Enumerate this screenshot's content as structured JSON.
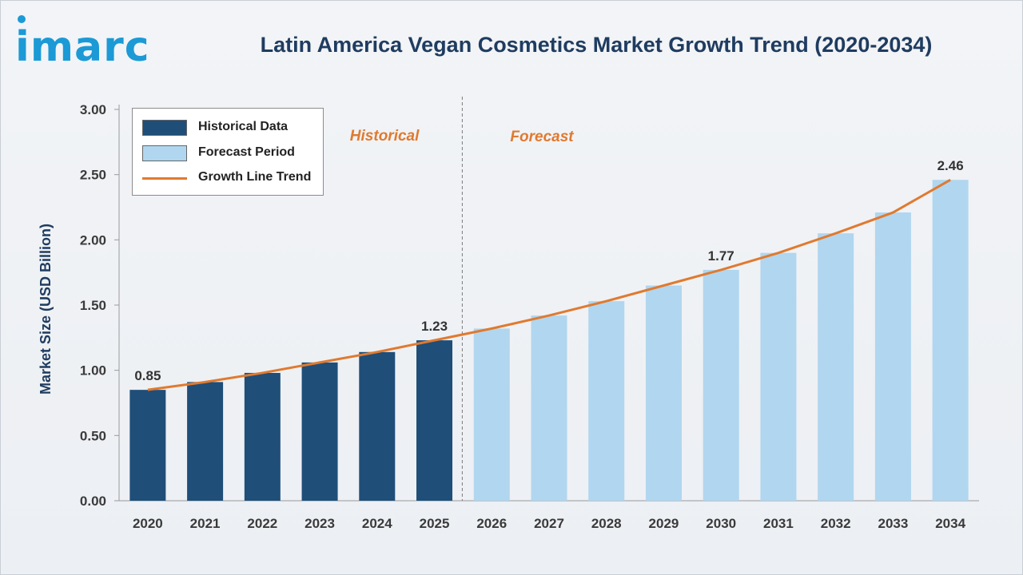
{
  "logo": {
    "text": "imarc"
  },
  "title": "Latin America Vegan Cosmetics Market Growth Trend (2020-2034)",
  "colors": {
    "historical": "#1f4e79",
    "forecast": "#b1d6ef",
    "trend": "#e07a2f",
    "title": "#1f3c60",
    "logo": "#1b9ad6"
  },
  "legend": {
    "items": [
      {
        "label": "Historical Data",
        "kind": "swatch",
        "color": "#1f4e79"
      },
      {
        "label": "Forecast Period",
        "kind": "swatch",
        "color": "#b1d6ef"
      },
      {
        "label": "Growth Line Trend",
        "kind": "line",
        "color": "#e07a2f"
      }
    ]
  },
  "chart_data": {
    "type": "bar",
    "title": "Latin America Vegan Cosmetics Market Growth Trend (2020-2034)",
    "xlabel": "",
    "ylabel": "Market Size (USD Billion)",
    "ylim": [
      0,
      3
    ],
    "yticks": [
      "0.00",
      "0.50",
      "1.00",
      "1.50",
      "2.00",
      "2.50",
      "3.00"
    ],
    "categories": [
      "2020",
      "2021",
      "2022",
      "2023",
      "2024",
      "2025",
      "2026",
      "2027",
      "2028",
      "2029",
      "2030",
      "2031",
      "2032",
      "2033",
      "2034"
    ],
    "series": [
      {
        "name": "Historical Data",
        "values": [
          0.85,
          0.91,
          0.98,
          1.06,
          1.14,
          1.23,
          null,
          null,
          null,
          null,
          null,
          null,
          null,
          null,
          null
        ]
      },
      {
        "name": "Forecast Period",
        "values": [
          null,
          null,
          null,
          null,
          null,
          null,
          1.32,
          1.42,
          1.53,
          1.65,
          1.77,
          1.9,
          2.05,
          2.21,
          2.46
        ]
      },
      {
        "name": "Growth Line Trend",
        "type": "line",
        "values": [
          0.85,
          0.91,
          0.98,
          1.06,
          1.14,
          1.23,
          1.32,
          1.42,
          1.53,
          1.65,
          1.77,
          1.9,
          2.05,
          2.21,
          2.46
        ]
      }
    ],
    "data_labels": [
      {
        "category": "2020",
        "text": "0.85"
      },
      {
        "category": "2025",
        "text": "1.23"
      },
      {
        "category": "2030",
        "text": "1.77"
      },
      {
        "category": "2034",
        "text": "2.46"
      }
    ],
    "regions": [
      {
        "label": "Historical",
        "split_after": "2025"
      },
      {
        "label": "Forecast"
      }
    ],
    "legend_position": "top-left",
    "grid": false
  }
}
